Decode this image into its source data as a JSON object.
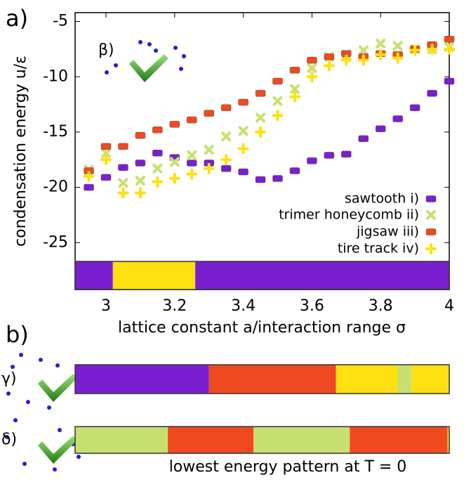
{
  "chart_data": {
    "type": "scatter",
    "panel_a": "a)",
    "panel_b": "b)",
    "inset_label": "β)",
    "ylabel": "condensation energy u/ε",
    "xlabel": "lattice constant a/interaction range σ",
    "caption": "lowest energy pattern at T = 0",
    "xlim": [
      2.91,
      4.0
    ],
    "ylim": [
      -26.7,
      -4.2
    ],
    "xticks": [
      3,
      3.2,
      3.4,
      3.6,
      3.8,
      4
    ],
    "yticks": [
      -5,
      -10,
      -15,
      -20,
      -25
    ],
    "legend": "lower right",
    "x": [
      2.95,
      3.0,
      3.05,
      3.1,
      3.15,
      3.2,
      3.25,
      3.3,
      3.35,
      3.4,
      3.45,
      3.5,
      3.55,
      3.6,
      3.65,
      3.7,
      3.75,
      3.8,
      3.85,
      3.9,
      3.95,
      4.0
    ],
    "series": [
      {
        "name": "sawtooth i)",
        "color": "#7a1fd0",
        "marker": "bar",
        "values": [
          -20.0,
          -19.1,
          -18.2,
          -17.8,
          -16.9,
          -17.3,
          -17.8,
          -17.8,
          -18.3,
          -18.6,
          -19.3,
          -19.2,
          -18.5,
          -17.6,
          -17.1,
          -17.0,
          -15.6,
          -14.7,
          -13.8,
          -12.8,
          -11.5,
          -10.4
        ]
      },
      {
        "name": "trimer honeycomb ii)",
        "color": "#c8e070",
        "marker": "x",
        "values": [
          -18.4,
          -16.9,
          -19.6,
          -19.4,
          -18.3,
          -17.7,
          -17.1,
          -16.6,
          -15.4,
          -14.9,
          -13.7,
          -12.2,
          -11.1,
          -9.2,
          -8.2,
          -8.0,
          -7.6,
          -7.0,
          -7.2,
          -7.5,
          -7.5,
          -7.3
        ]
      },
      {
        "name": "jigsaw iii)",
        "color": "#f04a20",
        "marker": "bar",
        "values": [
          -18.5,
          -16.3,
          -16.3,
          -15.3,
          -14.8,
          -14.3,
          -13.9,
          -13.3,
          -12.8,
          -12.3,
          -11.5,
          -10.4,
          -9.4,
          -8.5,
          -8.2,
          -7.9,
          -8.2,
          -7.9,
          -8.0,
          -7.5,
          -7.1,
          -6.6
        ]
      },
      {
        "name": "tire track iv)",
        "color": "#ffe010",
        "marker": "plus",
        "values": [
          -19.0,
          -17.5,
          -20.5,
          -20.5,
          -19.5,
          -19.2,
          -18.8,
          -18.3,
          -17.5,
          -16.5,
          -15.0,
          -13.5,
          -11.8,
          -10.0,
          -9.0,
          -8.5,
          -8.5,
          -8.0,
          -8.3,
          -7.6,
          -7.5,
          -7.5
        ]
      }
    ],
    "pattern_strips": [
      {
        "segments": [
          {
            "start": 2.91,
            "end": 3.02,
            "color": "#7a1fd0"
          },
          {
            "start": 3.02,
            "end": 3.26,
            "color": "#ffe010"
          },
          {
            "start": 3.26,
            "end": 4.0,
            "color": "#7a1fd0"
          }
        ]
      },
      {
        "label": "γ)",
        "segments": [
          {
            "start": 2.91,
            "end": 3.3,
            "color": "#7a1fd0"
          },
          {
            "start": 3.3,
            "end": 3.67,
            "color": "#f04a20"
          },
          {
            "start": 3.67,
            "end": 3.85,
            "color": "#ffe010"
          },
          {
            "start": 3.85,
            "end": 3.89,
            "color": "#c8e070"
          },
          {
            "start": 3.89,
            "end": 4.0,
            "color": "#ffe010"
          }
        ]
      },
      {
        "label": "δ)",
        "segments": [
          {
            "start": 2.91,
            "end": 3.18,
            "color": "#c8e070"
          },
          {
            "start": 3.18,
            "end": 3.43,
            "color": "#f04a20"
          },
          {
            "start": 3.43,
            "end": 3.71,
            "color": "#c8e070"
          },
          {
            "start": 3.71,
            "end": 3.995,
            "color": "#f04a20"
          },
          {
            "start": 3.995,
            "end": 4.0,
            "color": "#ffe010"
          }
        ]
      }
    ]
  }
}
